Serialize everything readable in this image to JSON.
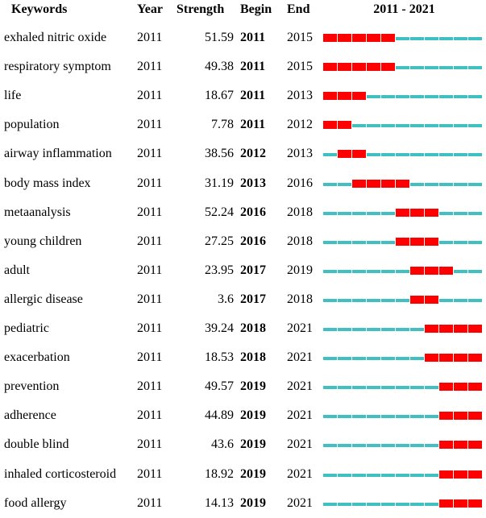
{
  "chart_data": {
    "type": "table",
    "headers": {
      "keyword": "Keywords",
      "year": "Year",
      "strength": "Strength",
      "begin": "Begin",
      "end": "End",
      "range": "2011 - 2021"
    },
    "range_start": 2011,
    "range_end": 2021,
    "colors": {
      "burst": "#ff0000",
      "normal": "#40c0c0"
    },
    "rows": [
      {
        "keyword": "exhaled nitric oxide",
        "year": "2011",
        "strength": "51.59",
        "begin": "2011",
        "end": "2015"
      },
      {
        "keyword": "respiratory symptom",
        "year": "2011",
        "strength": "49.38",
        "begin": "2011",
        "end": "2015"
      },
      {
        "keyword": "life",
        "year": "2011",
        "strength": "18.67",
        "begin": "2011",
        "end": "2013"
      },
      {
        "keyword": "population",
        "year": "2011",
        "strength": "7.78",
        "begin": "2011",
        "end": "2012"
      },
      {
        "keyword": "airway inflammation",
        "year": "2011",
        "strength": "38.56",
        "begin": "2012",
        "end": "2013"
      },
      {
        "keyword": "body mass index",
        "year": "2011",
        "strength": "31.19",
        "begin": "2013",
        "end": "2016"
      },
      {
        "keyword": "metaanalysis",
        "year": "2011",
        "strength": "52.24",
        "begin": "2016",
        "end": "2018"
      },
      {
        "keyword": "young children",
        "year": "2011",
        "strength": "27.25",
        "begin": "2016",
        "end": "2018"
      },
      {
        "keyword": "adult",
        "year": "2011",
        "strength": "23.95",
        "begin": "2017",
        "end": "2019"
      },
      {
        "keyword": "allergic disease",
        "year": "2011",
        "strength": "3.6",
        "begin": "2017",
        "end": "2018"
      },
      {
        "keyword": "pediatric",
        "year": "2011",
        "strength": "39.24",
        "begin": "2018",
        "end": "2021"
      },
      {
        "keyword": "exacerbation",
        "year": "2011",
        "strength": "18.53",
        "begin": "2018",
        "end": "2021"
      },
      {
        "keyword": "prevention",
        "year": "2011",
        "strength": "49.57",
        "begin": "2019",
        "end": "2021"
      },
      {
        "keyword": "adherence",
        "year": "2011",
        "strength": "44.89",
        "begin": "2019",
        "end": "2021"
      },
      {
        "keyword": "double blind",
        "year": "2011",
        "strength": "43.6",
        "begin": "2019",
        "end": "2021"
      },
      {
        "keyword": "inhaled corticosteroid",
        "year": "2011",
        "strength": "18.92",
        "begin": "2019",
        "end": "2021"
      },
      {
        "keyword": "food allergy",
        "year": "2011",
        "strength": "14.13",
        "begin": "2019",
        "end": "2021"
      }
    ]
  }
}
